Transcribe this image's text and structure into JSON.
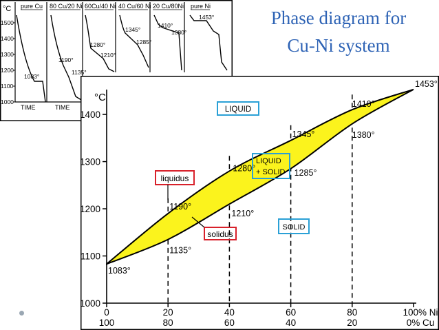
{
  "slide": {
    "title_line1": "Phase diagram for",
    "title_line2": "Cu-Ni system",
    "title_color": "#2e63b5"
  },
  "cooling_curves": {
    "y_unit": "°C",
    "y_ticks": [
      "1500",
      "1400",
      "1300",
      "1200",
      "1100",
      "1000"
    ],
    "x_label_time": "TIME",
    "curves": [
      {
        "label": "pure Cu",
        "arrest_temps": [
          "1083°"
        ]
      },
      {
        "label": "80 Cu/20 Ni",
        "arrest_temps": [
          "1190°",
          "1135°"
        ]
      },
      {
        "label": "60Cu/40 Ni",
        "arrest_temps": [
          "1280°",
          "1210°"
        ]
      },
      {
        "label": "40 Cu/60 Ni",
        "arrest_temps": [
          "1345°",
          "1285°"
        ]
      },
      {
        "label": "20 Cu/80Ni",
        "arrest_temps": [
          "1410°",
          "1380°"
        ]
      },
      {
        "label": "pure Ni",
        "arrest_temps": [
          "1453°"
        ]
      }
    ]
  },
  "chart_data": {
    "type": "area",
    "y_unit": "°C",
    "ylim": [
      1000,
      1460
    ],
    "y_ticks": [
      "1000",
      "1100",
      "1200",
      "1300",
      "1400"
    ],
    "x_ticks_ni": [
      "0",
      "20",
      "40",
      "60",
      "80",
      "100% Ni"
    ],
    "x_ticks_cu": [
      "100",
      "80",
      "60",
      "40",
      "20",
      "0% Cu"
    ],
    "liquidus": {
      "x": [
        0,
        20,
        40,
        60,
        80,
        100
      ],
      "y": [
        1083,
        1190,
        1280,
        1345,
        1410,
        1453
      ]
    },
    "solidus": {
      "x": [
        0,
        20,
        40,
        60,
        80,
        100
      ],
      "y": [
        1083,
        1135,
        1210,
        1285,
        1380,
        1453
      ]
    },
    "point_labels": [
      {
        "x": 0,
        "y": 1083,
        "text": "1083°"
      },
      {
        "x": 20,
        "y": 1190,
        "text": "1190°"
      },
      {
        "x": 20,
        "y": 1135,
        "text": "1135°"
      },
      {
        "x": 40,
        "y": 1280,
        "text": "1280°"
      },
      {
        "x": 40,
        "y": 1210,
        "text": "1210°"
      },
      {
        "x": 60,
        "y": 1345,
        "text": "1345°"
      },
      {
        "x": 60,
        "y": 1285,
        "text": "1285°"
      },
      {
        "x": 80,
        "y": 1410,
        "text": "1410°"
      },
      {
        "x": 80,
        "y": 1380,
        "text": "1380°"
      },
      {
        "x": 100,
        "y": 1453,
        "text": "1453°"
      }
    ],
    "region_labels": {
      "liquid": "LIQUID",
      "liquid_solid_1": "LIQUID",
      "liquid_solid_2": "+ SOLID",
      "solid": "SOLID",
      "liquidus": "liquidus",
      "solidus": "solidus"
    },
    "colors": {
      "two_phase_fill": "#fbf31d",
      "liquid_box": "#2aa0d6",
      "solid_box": "#2aa0d6",
      "line_box": "#d8202a"
    }
  }
}
